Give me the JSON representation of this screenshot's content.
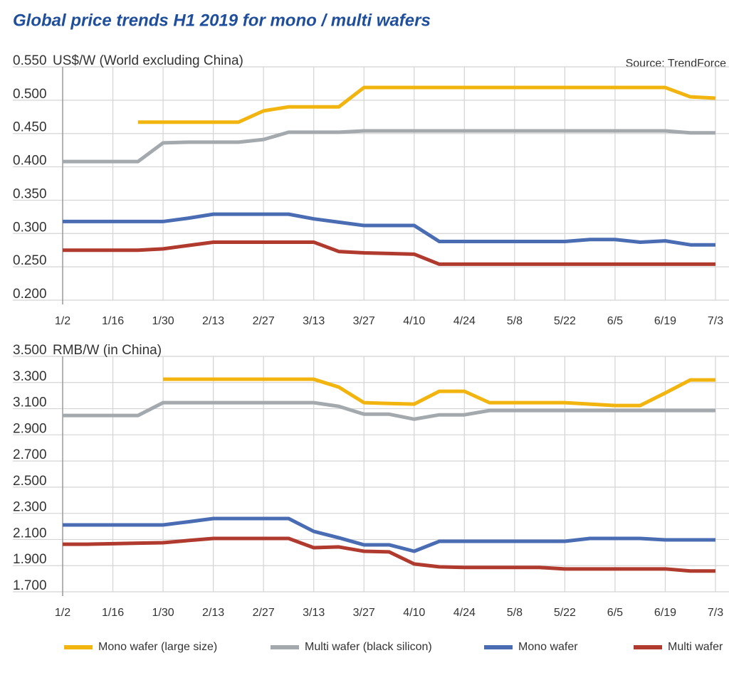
{
  "title": "Global price trends H1 2019 for mono / multi wafers",
  "source": "Source: TrendForce",
  "chart_data": [
    {
      "type": "line",
      "y_label": "US$/W (World excluding China)",
      "categories": [
        "1/2",
        null,
        "1/16",
        null,
        "1/30",
        null,
        "2/13",
        null,
        "2/27",
        null,
        "3/13",
        null,
        "3/27",
        null,
        "4/10",
        null,
        "4/24",
        null,
        "5/8",
        null,
        "5/22",
        null,
        "6/5",
        null,
        "6/19",
        null,
        "7/3"
      ],
      "ylim": [
        0.2,
        0.55
      ],
      "yticks": [
        {
          "value": 0.2,
          "label": "0.200"
        },
        {
          "value": 0.25,
          "label": "0.250"
        },
        {
          "value": 0.3,
          "label": "0.300"
        },
        {
          "value": 0.35,
          "label": "0.350"
        },
        {
          "value": 0.4,
          "label": "0.400"
        },
        {
          "value": 0.45,
          "label": "0.450"
        },
        {
          "value": 0.5,
          "label": "0.500"
        },
        {
          "value": 0.55,
          "label": "0.550"
        }
      ],
      "grid": true,
      "series": [
        {
          "name": "Mono wafer (large size)",
          "color": "#f2b50f",
          "values": [
            null,
            null,
            null,
            0.467,
            0.467,
            0.467,
            0.467,
            0.467,
            0.484,
            0.49,
            0.49,
            0.49,
            0.519,
            0.519,
            0.519,
            0.519,
            0.519,
            0.519,
            0.519,
            0.519,
            0.519,
            0.519,
            0.519,
            0.519,
            0.519,
            0.505,
            0.503
          ]
        },
        {
          "name": "Multi wafer (black silicon)",
          "color": "#a4a9ad",
          "values": [
            0.408,
            0.408,
            0.408,
            0.408,
            0.436,
            0.437,
            0.437,
            0.437,
            0.441,
            0.452,
            0.452,
            0.452,
            0.454,
            0.454,
            0.454,
            0.454,
            0.454,
            0.454,
            0.454,
            0.454,
            0.454,
            0.454,
            0.454,
            0.454,
            0.454,
            0.451,
            0.451
          ]
        },
        {
          "name": "Mono wafer",
          "color": "#4a6cb3",
          "values": [
            0.318,
            0.318,
            0.318,
            0.318,
            0.318,
            0.323,
            0.329,
            0.329,
            0.329,
            0.329,
            0.322,
            0.317,
            0.312,
            0.312,
            0.312,
            0.288,
            0.288,
            0.288,
            0.288,
            0.288,
            0.288,
            0.291,
            0.291,
            0.287,
            0.289,
            0.283,
            0.283
          ]
        },
        {
          "name": "Multi wafer",
          "color": "#b03a2e",
          "values": [
            0.275,
            0.275,
            0.275,
            0.275,
            0.277,
            0.282,
            0.287,
            0.287,
            0.287,
            0.287,
            0.287,
            0.273,
            0.271,
            0.27,
            0.269,
            0.254,
            0.254,
            0.254,
            0.254,
            0.254,
            0.254,
            0.254,
            0.254,
            0.254,
            0.254,
            0.254,
            0.254
          ]
        }
      ]
    },
    {
      "type": "line",
      "y_label": "RMB/W (in China)",
      "categories": [
        "1/2",
        null,
        "1/16",
        null,
        "1/30",
        null,
        "2/13",
        null,
        "2/27",
        null,
        "3/13",
        null,
        "3/27",
        null,
        "4/10",
        null,
        "4/24",
        null,
        "5/8",
        null,
        "5/22",
        null,
        "6/5",
        null,
        "6/19",
        null,
        "7/3"
      ],
      "ylim": [
        1.7,
        3.5
      ],
      "yticks": [
        {
          "value": 1.7,
          "label": "1.700"
        },
        {
          "value": 1.9,
          "label": "1.900"
        },
        {
          "value": 2.1,
          "label": "2.100"
        },
        {
          "value": 2.3,
          "label": "2.300"
        },
        {
          "value": 2.5,
          "label": "2.500"
        },
        {
          "value": 2.7,
          "label": "2.700"
        },
        {
          "value": 2.9,
          "label": "2.900"
        },
        {
          "value": 3.1,
          "label": "3.100"
        },
        {
          "value": 3.3,
          "label": "3.300"
        },
        {
          "value": 3.5,
          "label": "3.500"
        }
      ],
      "grid": true,
      "series": [
        {
          "color": "#f2b50f",
          "values": [
            null,
            null,
            null,
            null,
            3.325,
            3.325,
            3.325,
            3.325,
            3.325,
            3.325,
            3.325,
            3.265,
            3.146,
            3.14,
            3.135,
            3.233,
            3.233,
            3.146,
            3.146,
            3.146,
            3.146,
            3.135,
            3.124,
            3.124,
            3.22,
            3.32,
            3.32
          ]
        },
        {
          "color": "#a4a9ad",
          "values": [
            3.048,
            3.048,
            3.048,
            3.048,
            3.146,
            3.146,
            3.146,
            3.146,
            3.146,
            3.146,
            3.146,
            3.118,
            3.058,
            3.058,
            3.02,
            3.053,
            3.053,
            3.086,
            3.086,
            3.086,
            3.086,
            3.086,
            3.086,
            3.086,
            3.086,
            3.086,
            3.086
          ]
        },
        {
          "color": "#4a6cb3",
          "values": [
            2.211,
            2.211,
            2.211,
            2.211,
            2.211,
            2.235,
            2.26,
            2.26,
            2.26,
            2.26,
            2.162,
            2.113,
            2.059,
            2.059,
            2.01,
            2.086,
            2.086,
            2.086,
            2.086,
            2.086,
            2.086,
            2.108,
            2.108,
            2.108,
            2.097,
            2.097,
            2.097
          ]
        },
        {
          "color": "#b03a2e",
          "values": [
            2.064,
            2.064,
            2.068,
            2.072,
            2.075,
            2.092,
            2.108,
            2.108,
            2.108,
            2.108,
            2.037,
            2.043,
            2.01,
            2.005,
            1.913,
            1.891,
            1.886,
            1.886,
            1.886,
            1.886,
            1.875,
            1.875,
            1.875,
            1.875,
            1.875,
            1.859,
            1.859
          ]
        }
      ]
    }
  ]
}
